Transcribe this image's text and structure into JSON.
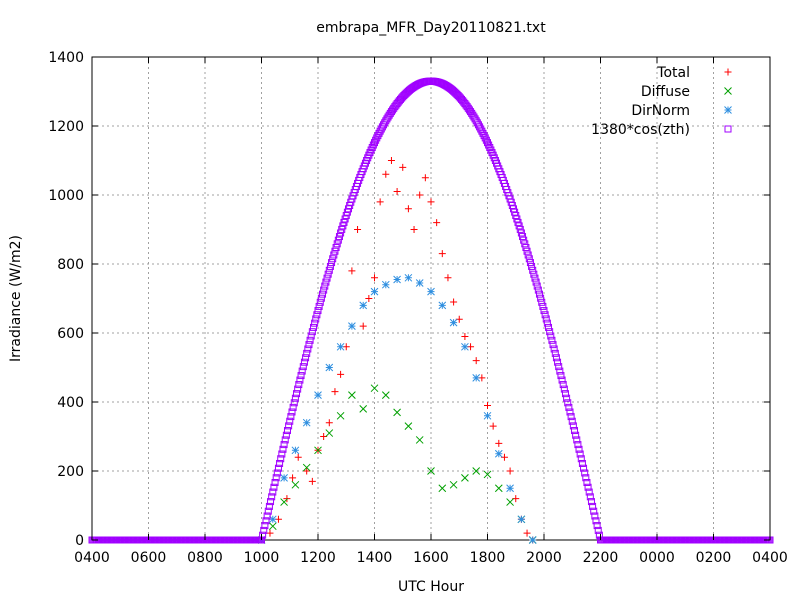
{
  "chart_data": {
    "type": "scatter",
    "title": "embrapa_MFR_Day20110821.txt",
    "xlabel": "UTC Hour",
    "ylabel": "Irradiance (W/m2)",
    "xlim": [
      0,
      24
    ],
    "ylim": [
      0,
      1400
    ],
    "grid": true,
    "legend_position": "top-right",
    "x_tick_values": [
      0,
      2,
      4,
      6,
      8,
      10,
      12,
      14,
      16,
      18,
      20,
      22,
      24
    ],
    "x_tick_labels": [
      "0400",
      "0600",
      "0800",
      "1000",
      "1200",
      "1400",
      "1600",
      "1800",
      "2000",
      "2200",
      "0000",
      "0200",
      "0400"
    ],
    "y_tick_values": [
      0,
      200,
      400,
      600,
      800,
      1000,
      1200,
      1400
    ],
    "y_tick_labels": [
      "0",
      "200",
      "400",
      "600",
      "800",
      "1000",
      "1200",
      "1400"
    ],
    "series": [
      {
        "name": "Total",
        "marker": "plus",
        "color": "#ff0000",
        "points": [
          [
            6.0,
            0
          ],
          [
            6.3,
            20
          ],
          [
            6.6,
            60
          ],
          [
            6.9,
            120
          ],
          [
            7.1,
            180
          ],
          [
            7.3,
            240
          ],
          [
            7.6,
            200
          ],
          [
            7.8,
            170
          ],
          [
            8.0,
            260
          ],
          [
            8.2,
            300
          ],
          [
            8.4,
            340
          ],
          [
            8.6,
            430
          ],
          [
            8.8,
            480
          ],
          [
            9.0,
            560
          ],
          [
            9.2,
            780
          ],
          [
            9.4,
            900
          ],
          [
            9.6,
            620
          ],
          [
            9.8,
            700
          ],
          [
            10.0,
            760
          ],
          [
            10.2,
            980
          ],
          [
            10.4,
            1060
          ],
          [
            10.6,
            1100
          ],
          [
            10.8,
            1010
          ],
          [
            11.0,
            1080
          ],
          [
            11.2,
            960
          ],
          [
            11.4,
            900
          ],
          [
            11.6,
            1000
          ],
          [
            11.8,
            1050
          ],
          [
            12.0,
            980
          ],
          [
            12.2,
            920
          ],
          [
            12.4,
            830
          ],
          [
            12.6,
            760
          ],
          [
            12.8,
            690
          ],
          [
            13.0,
            640
          ],
          [
            13.2,
            590
          ],
          [
            13.4,
            560
          ],
          [
            13.6,
            520
          ],
          [
            13.8,
            470
          ],
          [
            14.0,
            390
          ],
          [
            14.2,
            330
          ],
          [
            14.4,
            280
          ],
          [
            14.6,
            240
          ],
          [
            14.8,
            200
          ],
          [
            15.0,
            120
          ],
          [
            15.2,
            60
          ],
          [
            15.4,
            20
          ],
          [
            15.6,
            0
          ]
        ]
      },
      {
        "name": "Diffuse",
        "marker": "cross",
        "color": "#00a000",
        "points": [
          [
            6.0,
            0
          ],
          [
            6.4,
            40
          ],
          [
            6.8,
            110
          ],
          [
            7.2,
            160
          ],
          [
            7.6,
            210
          ],
          [
            8.0,
            260
          ],
          [
            8.4,
            310
          ],
          [
            8.8,
            360
          ],
          [
            9.2,
            420
          ],
          [
            9.6,
            380
          ],
          [
            10.0,
            440
          ],
          [
            10.4,
            420
          ],
          [
            10.8,
            370
          ],
          [
            11.2,
            330
          ],
          [
            11.6,
            290
          ],
          [
            12.0,
            200
          ],
          [
            12.4,
            150
          ],
          [
            12.8,
            160
          ],
          [
            13.2,
            180
          ],
          [
            13.6,
            200
          ],
          [
            14.0,
            190
          ],
          [
            14.4,
            150
          ],
          [
            14.8,
            110
          ],
          [
            15.2,
            60
          ],
          [
            15.6,
            0
          ]
        ]
      },
      {
        "name": "DirNorm",
        "marker": "star",
        "color": "#2f8fe0",
        "points": [
          [
            6.0,
            0
          ],
          [
            6.4,
            60
          ],
          [
            6.8,
            180
          ],
          [
            7.2,
            260
          ],
          [
            7.6,
            340
          ],
          [
            8.0,
            420
          ],
          [
            8.4,
            500
          ],
          [
            8.8,
            560
          ],
          [
            9.2,
            620
          ],
          [
            9.6,
            680
          ],
          [
            10.0,
            720
          ],
          [
            10.4,
            740
          ],
          [
            10.8,
            755
          ],
          [
            11.2,
            760
          ],
          [
            11.6,
            745
          ],
          [
            12.0,
            720
          ],
          [
            12.4,
            680
          ],
          [
            12.8,
            630
          ],
          [
            13.2,
            560
          ],
          [
            13.6,
            470
          ],
          [
            14.0,
            360
          ],
          [
            14.4,
            250
          ],
          [
            14.8,
            150
          ],
          [
            15.2,
            60
          ],
          [
            15.6,
            0
          ]
        ]
      },
      {
        "name": "1380*cos(zth)",
        "marker": "square",
        "color": "#a000ff",
        "curve": {
          "type": "cosine",
          "peak": 1330,
          "center": 12.0,
          "half_width": 6.0
        }
      }
    ]
  }
}
